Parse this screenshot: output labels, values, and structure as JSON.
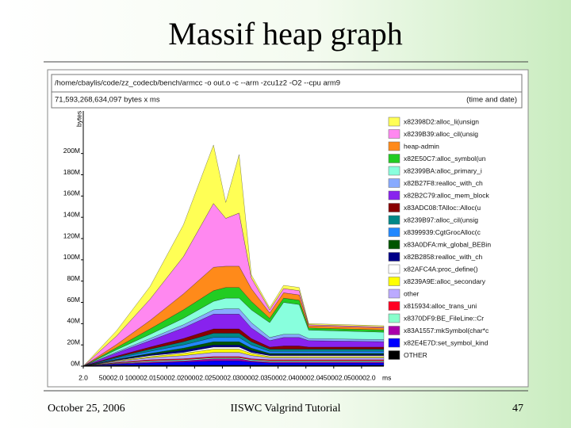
{
  "slide": {
    "title": "Massif heap graph",
    "date": "October 25, 2006",
    "event": "IISWC Valgrind Tutorial",
    "page": "47"
  },
  "chart_data": {
    "type": "stacked_area",
    "command": "/home/cbaylis/code/zz_codecb/bench/armcc -o out.o -c --arm -zcu1z2 -O2 --cpu arm9",
    "total": "71,593,268,634,097 bytes x ms",
    "time_note": "(time and date)",
    "x_label": "ms",
    "y_label": "bytes",
    "x": [
      2,
      60000,
      120000,
      180000,
      234000,
      256000,
      280000,
      302000,
      335000,
      360000,
      388000,
      405000,
      540000
    ],
    "xlim": [
      2,
      560000
    ],
    "xticks": [
      {
        "value": 2,
        "label": "2.0"
      },
      {
        "value": 50002,
        "label": "50002.0"
      },
      {
        "value": 100002,
        "label": "100002.0"
      },
      {
        "value": 150002,
        "label": "150002.0"
      },
      {
        "value": 200002,
        "label": "200002.0"
      },
      {
        "value": 250002,
        "label": "250002.0"
      },
      {
        "value": 300002,
        "label": "300002.0"
      },
      {
        "value": 350002,
        "label": "350002.0"
      },
      {
        "value": 400002,
        "label": "400002.0"
      },
      {
        "value": 450002,
        "label": "450002.0"
      },
      {
        "value": 500002,
        "label": "500002.0"
      }
    ],
    "ylim": [
      0,
      240000000
    ],
    "yticks": [
      {
        "value": 0,
        "label": "0M"
      },
      {
        "value": 20000000,
        "label": "20M"
      },
      {
        "value": 40000000,
        "label": "40M"
      },
      {
        "value": 60000000,
        "label": "60M"
      },
      {
        "value": 80000000,
        "label": "80M"
      },
      {
        "value": 100000000,
        "label": "100M"
      },
      {
        "value": 120000000,
        "label": "120M"
      },
      {
        "value": 140000000,
        "label": "140M"
      },
      {
        "value": 160000000,
        "label": "160M"
      },
      {
        "value": 180000000,
        "label": "180M"
      },
      {
        "value": 200000000,
        "label": "200M"
      }
    ],
    "series": [
      {
        "name": "x82398D2:alloc_li(unsign",
        "color": "#ffff55",
        "values": [
          0,
          5000000.0,
          12000000.0,
          30000000.0,
          55000000.0,
          15000000.0,
          55000000.0,
          3000000.0,
          2000000.0,
          3000000.0,
          3000000.0,
          1000000.0,
          1000000.0
        ]
      },
      {
        "name": "x8239B39:alloc_cil(unsig",
        "color": "#ff88f0",
        "values": [
          0,
          8000000.0,
          20000000.0,
          35000000.0,
          60000000.0,
          45000000.0,
          50000000.0,
          10000000.0,
          3000000.0,
          4000000.0,
          4000000.0,
          1000000.0,
          1000000.0
        ]
      },
      {
        "name": "heap-admin",
        "color": "#ff8a1a",
        "values": [
          0,
          3000000.0,
          8000000.0,
          15000000.0,
          22000000.0,
          20000000.0,
          20000000.0,
          12000000.0,
          5000000.0,
          5000000.0,
          5000000.0,
          2000000.0,
          2000000.0
        ]
      },
      {
        "name": "x82E50C7:alloc_symbol(un",
        "color": "#22cc22",
        "values": [
          0,
          2000000.0,
          5000000.0,
          8000000.0,
          10000000.0,
          10000000.0,
          10000000.0,
          8000000.0,
          4000000.0,
          4000000.0,
          4000000.0,
          2000000.0,
          2000000.0
        ]
      },
      {
        "name": "x82399BA:alloc_primary_i",
        "color": "#88ffdd",
        "values": [
          0,
          2000000.0,
          4000000.0,
          6000000.0,
          8000000.0,
          10000000.0,
          10000000.0,
          12000000.0,
          14000000.0,
          30000000.0,
          28000000.0,
          8000000.0,
          7000000.0
        ]
      },
      {
        "name": "x82B27F8:realloc_with_ch",
        "color": "#88aaff",
        "values": [
          0,
          1000000.0,
          2000000.0,
          3000000.0,
          4000000.0,
          5000000.0,
          5000000.0,
          5000000.0,
          3000000.0,
          3000000.0,
          3000000.0,
          2000000.0,
          2000000.0
        ]
      },
      {
        "name": "x82B2C79:alloc_mem_block",
        "color": "#8822ee",
        "values": [
          0,
          3000000.0,
          6000000.0,
          10000000.0,
          14000000.0,
          14000000.0,
          14000000.0,
          10000000.0,
          6000000.0,
          8000000.0,
          8000000.0,
          6000000.0,
          5000000.0
        ]
      },
      {
        "name": "x83ADC08:TAlloc::Alloc(u",
        "color": "#880000",
        "values": [
          0,
          1000000.0,
          2000000.0,
          3000000.0,
          4000000.0,
          4000000.0,
          4000000.0,
          3000000.0,
          2000000.0,
          3000000.0,
          3000000.0,
          2000000.0,
          2000000.0
        ]
      },
      {
        "name": "x8239B97:alloc_cil(unsig",
        "color": "#008888",
        "values": [
          0,
          1000000.0,
          2000000.0,
          3000000.0,
          4000000.0,
          4000000.0,
          4000000.0,
          3000000.0,
          2000000.0,
          2000000.0,
          2000000.0,
          2000000.0,
          2000000.0
        ]
      },
      {
        "name": "x8399939:CgtGrocAlloc(c",
        "color": "#2288ff",
        "values": [
          0,
          1000000.0,
          2000000.0,
          3000000.0,
          4000000.0,
          4000000.0,
          4000000.0,
          3000000.0,
          2000000.0,
          2000000.0,
          2000000.0,
          2000000.0,
          2000000.0
        ]
      },
      {
        "name": "x83A0DFA:mk_global_BEBin",
        "color": "#005500",
        "values": [
          0,
          500000.0,
          1000000.0,
          2000000.0,
          3000000.0,
          3000000.0,
          3000000.0,
          2000000.0,
          1000000.0,
          1000000.0,
          1000000.0,
          1000000.0,
          1000000.0
        ]
      },
      {
        "name": "x82B2858:realloc_with_ch",
        "color": "#000088",
        "values": [
          0,
          500000.0,
          1000000.0,
          2000000.0,
          2000000.0,
          2000000.0,
          2000000.0,
          2000000.0,
          1000000.0,
          1000000.0,
          1000000.0,
          1000000.0,
          1000000.0
        ]
      },
      {
        "name": "x82AFC4A:proc_define()",
        "color": "#ffffff",
        "values": [
          0,
          500000.0,
          1000000.0,
          1000000.0,
          2000000.0,
          2000000.0,
          2000000.0,
          1000000.0,
          1000000.0,
          1000000.0,
          1000000.0,
          1000000.0,
          1000000.0
        ]
      },
      {
        "name": "x8239A9E:alloc_secondary",
        "color": "#ffff00",
        "values": [
          0,
          500000.0,
          1000000.0,
          2000000.0,
          3000000.0,
          3000000.0,
          3000000.0,
          2000000.0,
          1000000.0,
          1000000.0,
          1000000.0,
          1000000.0,
          1000000.0
        ]
      },
      {
        "name": "other",
        "color": "#bbaaff",
        "values": [
          0,
          1000000.0,
          2000000.0,
          3000000.0,
          4000000.0,
          4000000.0,
          4000000.0,
          3000000.0,
          2000000.0,
          2000000.0,
          2000000.0,
          2000000.0,
          2000000.0
        ]
      },
      {
        "name": "x815934:alloc_trans_uni",
        "color": "#ff0022",
        "values": [
          0,
          500000.0,
          1000000.0,
          1000000.0,
          1000000.0,
          1000000.0,
          1000000.0,
          1000000.0,
          1000000.0,
          1000000.0,
          1000000.0,
          1000000.0,
          1000000.0
        ]
      },
      {
        "name": "x8370DF9:BE_FileLine::Cr",
        "color": "#88ffcc",
        "values": [
          0,
          500000.0,
          1000000.0,
          1000000.0,
          1000000.0,
          1000000.0,
          1000000.0,
          1000000.0,
          1000000.0,
          1000000.0,
          1000000.0,
          1000000.0,
          1000000.0
        ]
      },
      {
        "name": "x83A1557:mkSymbol(char*c",
        "color": "#aa00aa",
        "values": [
          0,
          500000.0,
          1000000.0,
          1000000.0,
          2000000.0,
          2000000.0,
          2000000.0,
          1000000.0,
          1000000.0,
          1000000.0,
          1000000.0,
          1000000.0,
          1000000.0
        ]
      },
      {
        "name": "x82E4E7D:set_symbol_kind",
        "color": "#0000ff",
        "values": [
          0,
          1000000.0,
          2000000.0,
          3000000.0,
          4000000.0,
          4000000.0,
          4000000.0,
          3000000.0,
          2000000.0,
          2000000.0,
          2000000.0,
          2000000.0,
          2000000.0
        ]
      },
      {
        "name": "OTHER",
        "color": "#000000",
        "values": [
          0,
          1000000.0,
          1000000.0,
          1000000.0,
          1000000.0,
          1000000.0,
          1000000.0,
          1000000.0,
          1000000.0,
          1000000.0,
          1000000.0,
          1000000.0,
          1000000.0
        ]
      }
    ]
  }
}
